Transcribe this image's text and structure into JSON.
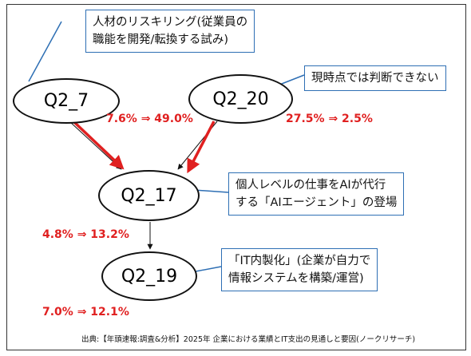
{
  "colors": {
    "node_border": "#111111",
    "callout_border": "#2e6fb4",
    "highlight_red": "#e02020",
    "arrow_black": "#111111"
  },
  "nodes": {
    "q2_7": "Q2_7",
    "q2_20": "Q2_20",
    "q2_17": "Q2_17",
    "q2_19": "Q2_19"
  },
  "callouts": {
    "q2_7": {
      "line1": "人材のリスキリング(従業員の",
      "line2": "職能を開発/転換する試み)"
    },
    "q2_20": {
      "line1": "現時点では判断できない"
    },
    "q2_17": {
      "line1": "個人レベルの仕事をAIが代行",
      "line2": "する「AIエージェント」の登場"
    },
    "q2_19": {
      "line1": "「IT内製化」(企業が自力で",
      "line2": "情報システムを構築/運営)"
    }
  },
  "percentages": {
    "q2_7_change": "7.6% ⇒ 49.0%",
    "q2_20_change": "27.5% ⇒ 2.5%",
    "q2_17_change": "4.8% ⇒ 13.2%",
    "q2_19_change": "7.0% ⇒ 12.1%"
  },
  "source": "出典:【年頭速報:調査&分析】2025年 企業における業績とIT支出の見通しと要因(ノークリサーチ)"
}
